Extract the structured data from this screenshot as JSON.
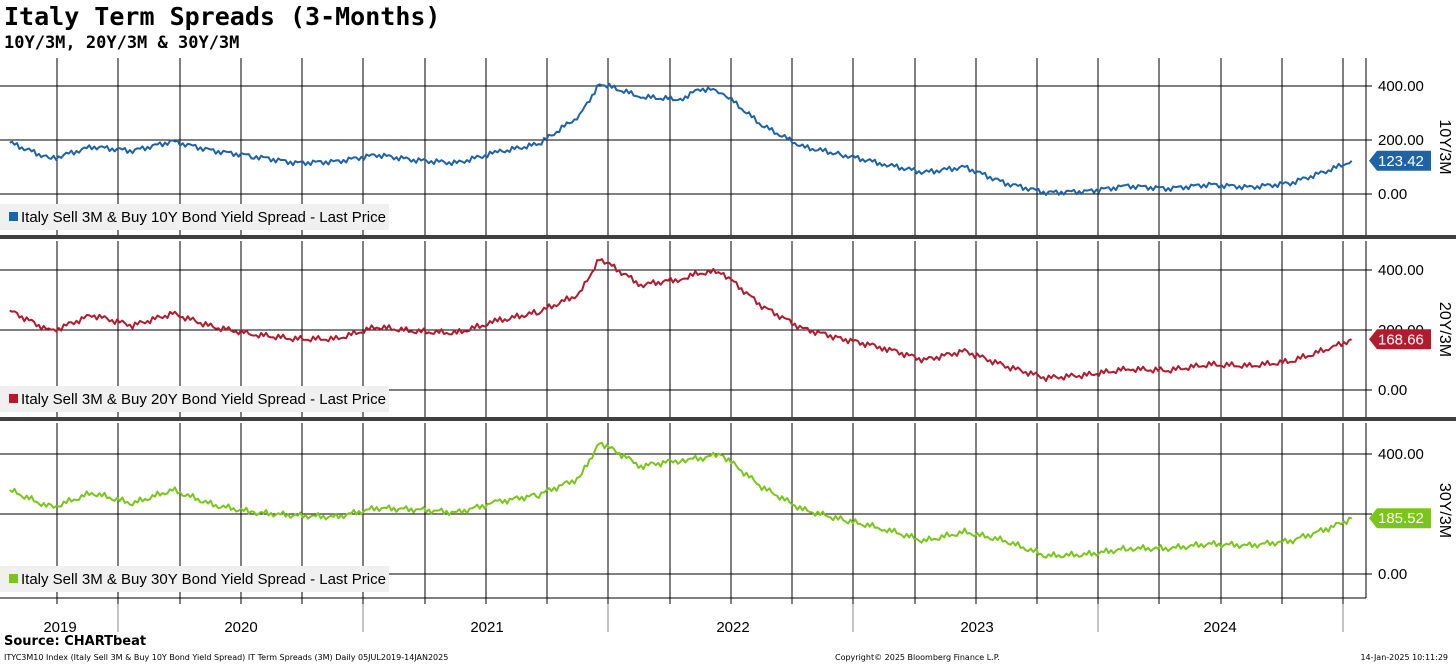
{
  "title": "Italy Term Spreads (3-Months)",
  "subtitle": "10Y/3M, 20Y/3M & 30Y/3M",
  "source": "Source: CHARTbeat",
  "footer": {
    "left": "ITYC3M10 Index (Italy Sell 3M & Buy 10Y Bond Yield Spread) IT Term Spreads (3M)  Daily 05JUL2019-14JAN2025",
    "center": "Copyright© 2025 Bloomberg Finance L.P.",
    "right": "14-Jan-2025 10:11:29"
  },
  "colors": {
    "s10": "#1f63a5",
    "s20": "#b01c2e",
    "s30": "#7ac51b"
  },
  "chart_data": {
    "type": "line",
    "x_labels": [
      "2019",
      "2020",
      "2021",
      "2022",
      "2023",
      "2024"
    ],
    "y_ticks": [
      "0.00",
      "200.00",
      "400.00"
    ],
    "x": [
      "2019-07",
      "2019-09",
      "2019-11",
      "2020-01",
      "2020-03",
      "2020-05",
      "2020-07",
      "2020-09",
      "2020-11",
      "2021-01",
      "2021-03",
      "2021-05",
      "2021-07",
      "2021-09",
      "2021-11",
      "2021-12",
      "2022-02",
      "2022-04",
      "2022-05",
      "2022-06",
      "2022-08",
      "2022-10",
      "2022-12",
      "2023-02",
      "2023-04",
      "2023-06",
      "2023-08",
      "2023-10",
      "2023-12",
      "2024-02",
      "2024-04",
      "2024-06",
      "2024-08",
      "2024-10",
      "2024-12",
      "2025-01"
    ],
    "series": [
      {
        "name": "Italy Sell 3M & Buy 10Y Bond Yield Spread - Last Price",
        "axis_label": "10Y/3M",
        "last": "123.42",
        "values": [
          190,
          130,
          175,
          160,
          195,
          160,
          140,
          115,
          120,
          145,
          125,
          115,
          155,
          185,
          290,
          410,
          360,
          350,
          390,
          380,
          255,
          175,
          145,
          110,
          80,
          100,
          40,
          5,
          10,
          30,
          20,
          35,
          25,
          40,
          90,
          123
        ]
      },
      {
        "name": "Italy Sell 3M & Buy 20Y Bond Yield Spread - Last Price",
        "axis_label": "20Y/3M",
        "last": "168.66",
        "values": [
          265,
          195,
          250,
          215,
          255,
          210,
          185,
          170,
          170,
          210,
          195,
          190,
          230,
          260,
          320,
          440,
          350,
          370,
          390,
          395,
          280,
          205,
          170,
          140,
          100,
          130,
          80,
          40,
          50,
          70,
          65,
          85,
          80,
          95,
          140,
          169
        ]
      },
      {
        "name": "Italy Sell 3M & Buy 30Y Bond Yield Spread - Last Price",
        "axis_label": "30Y/3M",
        "last": "185.52",
        "values": [
          280,
          220,
          270,
          235,
          280,
          230,
          205,
          195,
          190,
          220,
          215,
          205,
          240,
          265,
          320,
          440,
          360,
          380,
          385,
          400,
          290,
          215,
          180,
          150,
          110,
          140,
          110,
          60,
          65,
          85,
          85,
          100,
          95,
          110,
          155,
          186
        ]
      }
    ]
  }
}
